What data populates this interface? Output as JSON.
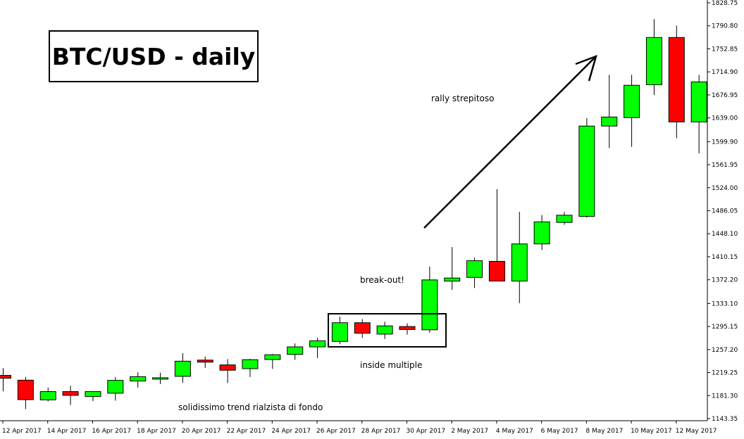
{
  "chart_data": {
    "type": "candlestick",
    "title": "BTC/USD - daily",
    "x_tick_labels": [
      "12 Apr 2017",
      "14 Apr 2017",
      "16 Apr 2017",
      "18 Apr 2017",
      "20 Apr 2017",
      "22 Apr 2017",
      "24 Apr 2017",
      "26 Apr 2017",
      "28 Apr 2017",
      "30 Apr 2017",
      "2 May 2017",
      "4 May 2017",
      "6 May 2017",
      "8 May 2017",
      "10 May 2017",
      "12 May 2017"
    ],
    "y_tick_labels": [
      "1143.35",
      "1181.30",
      "1219.25",
      "1257.20",
      "1295.15",
      "1333.10",
      "1372.20",
      "1410.15",
      "1448.10",
      "1486.05",
      "1524.00",
      "1561.95",
      "1599.90",
      "1639.00",
      "1676.95",
      "1714.90",
      "1752.85",
      "1790.80",
      "1828.75"
    ],
    "ylim": [
      1143.35,
      1828.75
    ],
    "candles": [
      {
        "date": "12 Apr 2017",
        "open": 1214.6,
        "high": 1226.6,
        "low": 1188.3,
        "close": 1209.9
      },
      {
        "date": "13 Apr 2017",
        "open": 1206.7,
        "high": 1212.0,
        "low": 1159.0,
        "close": 1174.6
      },
      {
        "date": "14 Apr 2017",
        "open": 1174.2,
        "high": 1194.6,
        "low": 1171.7,
        "close": 1187.9
      },
      {
        "date": "15 Apr 2017",
        "open": 1187.9,
        "high": 1197.6,
        "low": 1165.8,
        "close": 1181.7
      },
      {
        "date": "16 Apr 2017",
        "open": 1179.7,
        "high": 1187.9,
        "low": 1172.1,
        "close": 1187.9
      },
      {
        "date": "17 Apr 2017",
        "open": 1185.2,
        "high": 1212.0,
        "low": 1172.9,
        "close": 1206.4
      },
      {
        "date": "18 Apr 2017",
        "open": 1205.3,
        "high": 1219.6,
        "low": 1194.5,
        "close": 1212.5
      },
      {
        "date": "19 Apr 2017",
        "open": 1210.7,
        "high": 1219.0,
        "low": 1200.3,
        "close": 1210.7
      },
      {
        "date": "20 Apr 2017",
        "open": 1213.0,
        "high": 1251.2,
        "low": 1202.5,
        "close": 1238.0
      },
      {
        "date": "21 Apr 2017",
        "open": 1239.8,
        "high": 1245.6,
        "low": 1226.8,
        "close": 1236.4
      },
      {
        "date": "22 Apr 2017",
        "open": 1231.9,
        "high": 1241.5,
        "low": 1202.0,
        "close": 1223.1
      },
      {
        "date": "23 Apr 2017",
        "open": 1225.7,
        "high": 1242.0,
        "low": 1211.9,
        "close": 1240.5
      },
      {
        "date": "24 Apr 2017",
        "open": 1240.7,
        "high": 1250.1,
        "low": 1225.3,
        "close": 1248.6
      },
      {
        "date": "25 Apr 2017",
        "open": 1249.1,
        "high": 1267.2,
        "low": 1240.2,
        "close": 1261.6
      },
      {
        "date": "26 Apr 2017",
        "open": 1261.6,
        "high": 1276.4,
        "low": 1243.1,
        "close": 1271.6
      },
      {
        "date": "27 Apr 2017",
        "open": 1270.6,
        "high": 1311.3,
        "low": 1266.1,
        "close": 1301.4
      },
      {
        "date": "28 Apr 2017",
        "open": 1301.4,
        "high": 1307.4,
        "low": 1276.2,
        "close": 1284.1
      },
      {
        "date": "29 Apr 2017",
        "open": 1282.6,
        "high": 1303.0,
        "low": 1274.7,
        "close": 1296.2
      },
      {
        "date": "30 Apr 2017",
        "open": 1295.1,
        "high": 1300.4,
        "low": 1281.8,
        "close": 1290.2
      },
      {
        "date": "1 May 2017",
        "open": 1289.7,
        "high": 1394.0,
        "low": 1284.7,
        "close": 1372.0
      },
      {
        "date": "2 May 2017",
        "open": 1370.0,
        "high": 1426.1,
        "low": 1355.6,
        "close": 1375.1
      },
      {
        "date": "3 May 2017",
        "open": 1376.1,
        "high": 1408.6,
        "low": 1358.6,
        "close": 1403.6
      },
      {
        "date": "4 May 2017",
        "open": 1402.6,
        "high": 1521.5,
        "low": 1369.7,
        "close": 1370.1
      },
      {
        "date": "5 May 2017",
        "open": 1370.1,
        "high": 1484.1,
        "low": 1333.7,
        "close": 1431.3
      },
      {
        "date": "6 May 2017",
        "open": 1431.3,
        "high": 1479.0,
        "low": 1421.2,
        "close": 1467.7
      },
      {
        "date": "7 May 2017",
        "open": 1466.7,
        "high": 1484.1,
        "low": 1462.7,
        "close": 1478.6
      },
      {
        "date": "8 May 2017",
        "open": 1476.6,
        "high": 1638.7,
        "low": 1474.6,
        "close": 1625.6
      },
      {
        "date": "9 May 2017",
        "open": 1625.6,
        "high": 1710.0,
        "low": 1589.3,
        "close": 1640.5
      },
      {
        "date": "10 May 2017",
        "open": 1639.5,
        "high": 1710.0,
        "low": 1591.3,
        "close": 1692.8
      },
      {
        "date": "11 May 2017",
        "open": 1693.8,
        "high": 1801.8,
        "low": 1676.7,
        "close": 1771.6
      },
      {
        "date": "12 May 2017",
        "open": 1771.6,
        "high": 1791.4,
        "low": 1605.5,
        "close": 1632.4
      },
      {
        "date": "13 May 2017",
        "open": 1632.4,
        "high": 1710.0,
        "low": 1580.5,
        "close": 1698.4
      }
    ],
    "up_color": "#00ff00",
    "down_color": "#ff0000",
    "annotations": [
      {
        "text": "rally strepitoso"
      },
      {
        "text": "break-out!"
      },
      {
        "text": "inside multiple"
      },
      {
        "text": "solidissimo trend rialzista di fondo"
      }
    ]
  }
}
